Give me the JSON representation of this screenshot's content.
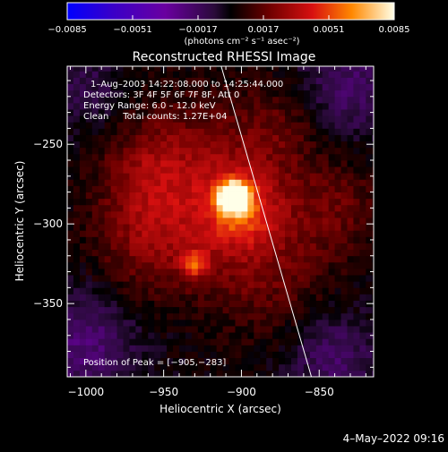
{
  "chart_data": {
    "type": "heatmap",
    "title": "Reconstructed RHESSI Image",
    "xlabel": "Heliocentric X (arcsec)",
    "ylabel": "Heliocentric Y (arcsec)",
    "xlim": [
      -1012,
      -815
    ],
    "ylim": [
      -396,
      -201
    ],
    "x_ticks": [
      -1000,
      -950,
      -900,
      -850
    ],
    "x_tick_labels": [
      "−1000",
      "−950",
      "−900",
      "−850"
    ],
    "y_ticks": [
      -250,
      -300,
      -350
    ],
    "y_tick_labels": [
      "−250",
      "−300",
      "−350"
    ],
    "colorbar": {
      "range": [
        -0.0085,
        0.0085
      ],
      "ticks": [
        -0.0085,
        -0.0051,
        -0.0017,
        0.0017,
        0.0051,
        0.0085
      ],
      "tick_labels": [
        "−0.0085",
        "−0.0051",
        "−0.0017",
        "0.0017",
        "0.0051",
        "0.0085"
      ],
      "unit_label": "(photons cm⁻² s⁻¹ asec⁻²)"
    },
    "annotations": [
      "1–Aug–2003 14:22:08.000 to 14:25:44.000",
      "Detectors: 3F 4F 5F 6F 7F 8F, Att 0",
      "Energy Range: 6.0 – 12.0 keV",
      "Clean     Total counts: 1.27E+04"
    ],
    "peak_label": "Position of Peak = [−905,−283]",
    "peak": {
      "x": -905,
      "y": -283,
      "value": 0.0085
    },
    "sources": [
      {
        "x": -905,
        "y": -283,
        "sigma": 6,
        "amp": 0.0095
      },
      {
        "x": -900,
        "y": -290,
        "sigma": 16,
        "amp": 0.0035
      },
      {
        "x": -930,
        "y": -325,
        "sigma": 6,
        "amp": 0.0035
      },
      {
        "x": -925,
        "y": -275,
        "sigma": 38,
        "amp": 0.0026
      },
      {
        "x": -885,
        "y": -330,
        "sigma": 28,
        "amp": 0.0016
      },
      {
        "x": -960,
        "y": -310,
        "sigma": 24,
        "amp": 0.0018
      },
      {
        "x": -840,
        "y": -290,
        "sigma": 22,
        "amp": 0.0016
      },
      {
        "x": -960,
        "y": -265,
        "sigma": 20,
        "amp": 0.0014
      },
      {
        "x": -875,
        "y": -240,
        "sigma": 18,
        "amp": 0.0012
      },
      {
        "x": -1000,
        "y": -375,
        "sigma": 22,
        "amp": -0.0022
      },
      {
        "x": -830,
        "y": -215,
        "sigma": 22,
        "amp": -0.0018
      },
      {
        "x": -840,
        "y": -385,
        "sigma": 20,
        "amp": -0.0018
      },
      {
        "x": -1000,
        "y": -215,
        "sigma": 20,
        "amp": -0.0012
      }
    ],
    "limb": [
      [
        -913,
        -201
      ],
      [
        -855,
        -396
      ]
    ]
  },
  "footer_date": "4–May–2022 09:16"
}
